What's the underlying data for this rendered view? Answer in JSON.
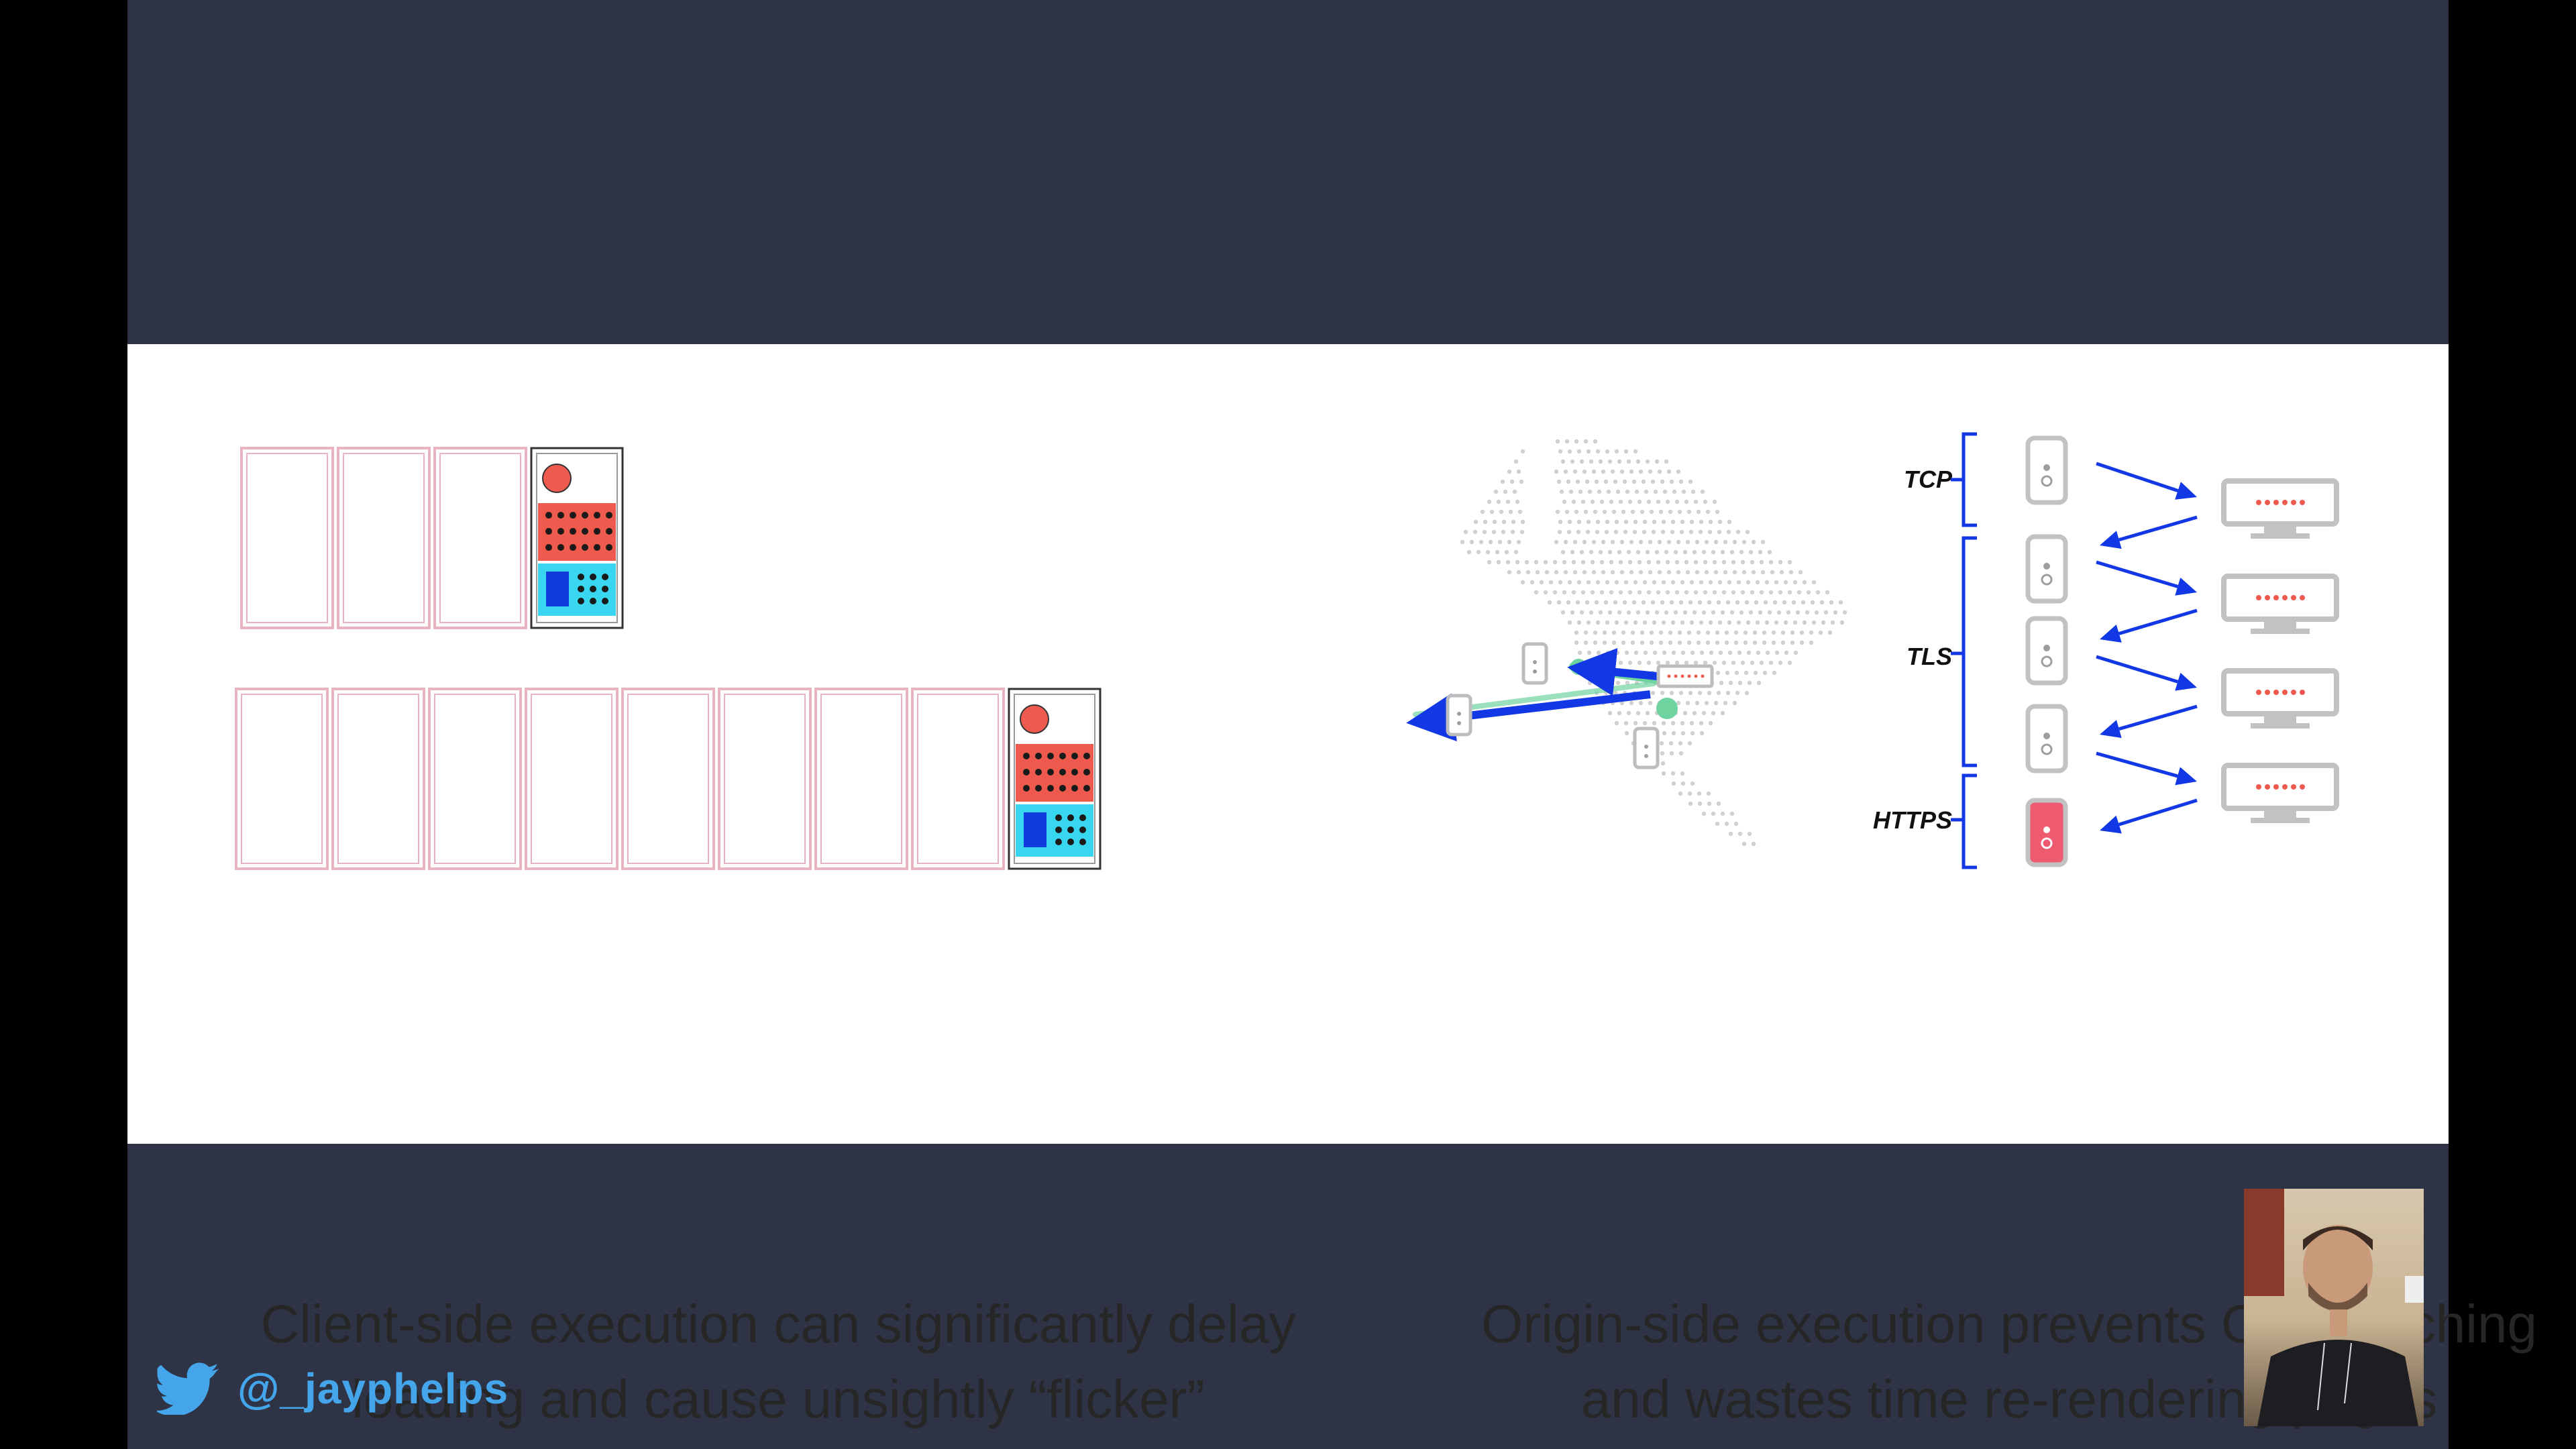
{
  "slide": {
    "left_caption_lines": [
      "Client-side execution can significantly delay",
      "loading and cause unsightly “flicker”"
    ],
    "right_caption_lines": [
      "Origin-side execution prevents CDN caching",
      "and wastes time re-rendering pages"
    ],
    "protocol_labels": {
      "tcp": "TCP",
      "tls": "TLS",
      "https": "HTTPS"
    }
  },
  "footer": {
    "twitter_icon": "twitter-bird-icon",
    "twitter_handle": "@_jayphelps"
  },
  "webcam": {
    "description_icon": "presenter-video"
  },
  "colors": {
    "background": "#2e3446",
    "slide": "#ffffff",
    "frame_outline": "#e8b4c0",
    "accent_red": "#ef5a4f",
    "accent_cyan": "#39d6f0",
    "accent_blue": "#0f3bdc",
    "arrow_blue": "#1238e6",
    "server_pink": "#ee5a6f",
    "twitter_blue": "#44a5ea",
    "map_dots": "#d0d0d0",
    "route_green": "#6fd3a0"
  }
}
